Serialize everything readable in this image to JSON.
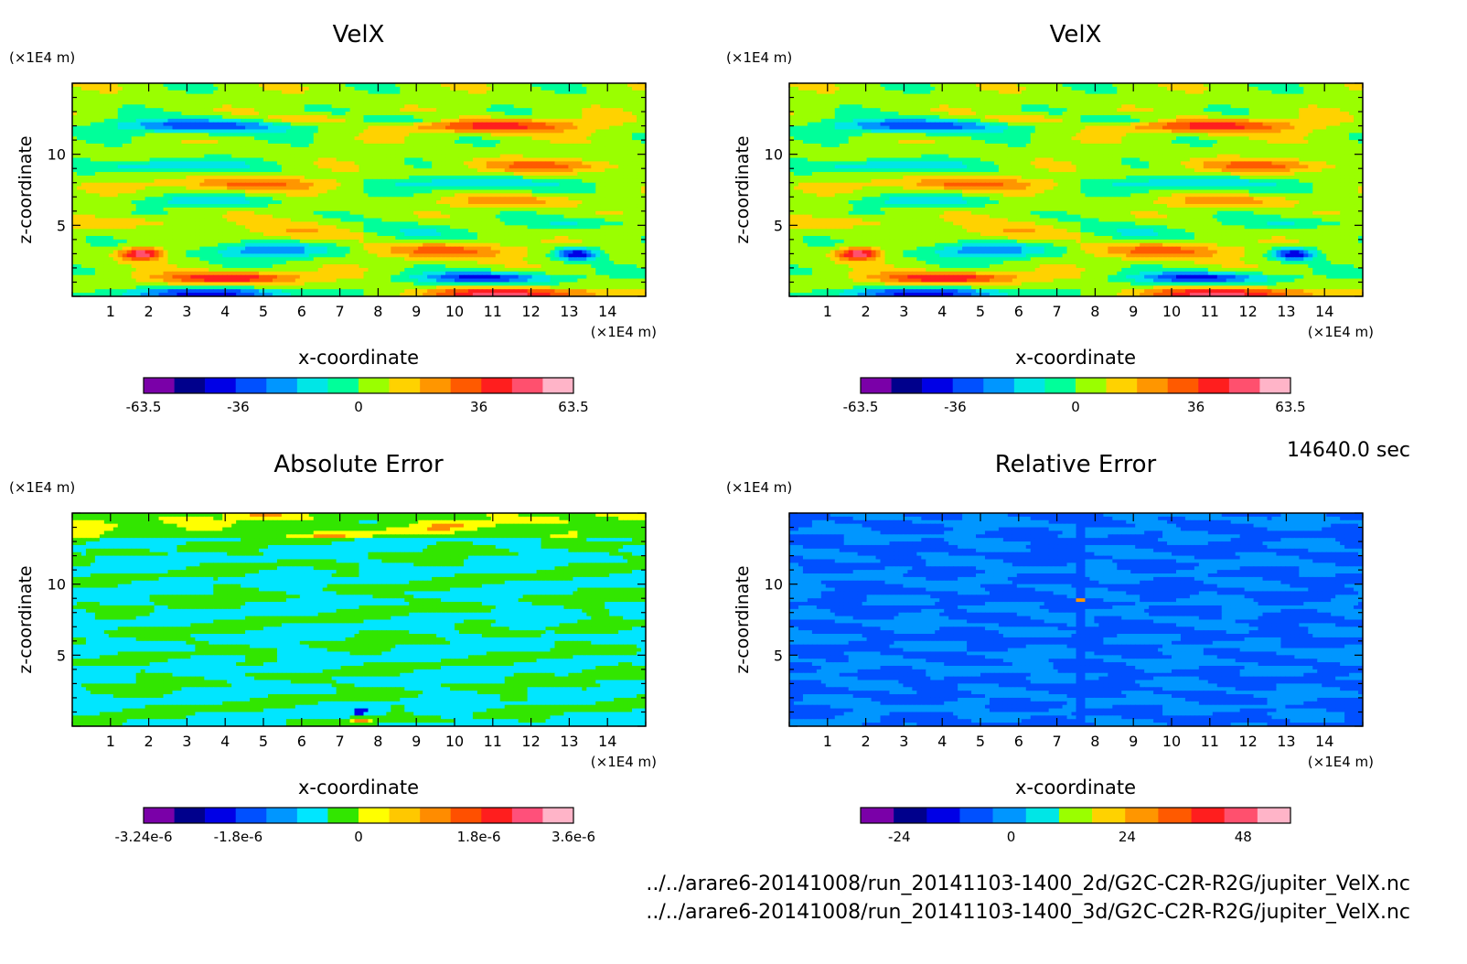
{
  "time_label": "14640.0 sec",
  "file_paths": [
    "../../arare6-20141008/run_20141103-1400_2d/G2C-C2R-R2G/jupiter_VelX.nc",
    "../../arare6-20141008/run_20141103-1400_3d/G2C-C2R-R2G/jupiter_VelX.nc"
  ],
  "chart_data": [
    {
      "type": "heatmap",
      "title": "VelX",
      "xlabel": "x-coordinate",
      "ylabel": "z-coordinate",
      "x_unit": "(x1E4 m)",
      "y_unit": "(x1E4 m)",
      "xlim": [
        0,
        15
      ],
      "ylim": [
        0,
        15
      ],
      "x_ticks": [
        "1",
        "2",
        "3",
        "4",
        "5",
        "6",
        "7",
        "8",
        "9",
        "10",
        "11",
        "12",
        "13",
        "14"
      ],
      "y_ticks": [
        "5",
        "10"
      ],
      "colorbar_labels": [
        "-63.5",
        "-36",
        "0",
        "36",
        "63.5"
      ],
      "colorbar_colors": [
        "#7a00a8",
        "#00008c",
        "#0000e6",
        "#0050ff",
        "#0096ff",
        "#00e6e6",
        "#00ff9a",
        "#9aff00",
        "#ffd200",
        "#ff9600",
        "#ff5a00",
        "#ff1e1e",
        "#ff506e",
        "#ffb4c8"
      ],
      "field": "velx"
    },
    {
      "type": "heatmap",
      "title": "VelX",
      "xlabel": "x-coordinate",
      "ylabel": "z-coordinate",
      "x_unit": "(x1E4 m)",
      "y_unit": "(x1E4 m)",
      "xlim": [
        0,
        15
      ],
      "ylim": [
        0,
        15
      ],
      "x_ticks": [
        "1",
        "2",
        "3",
        "4",
        "5",
        "6",
        "7",
        "8",
        "9",
        "10",
        "11",
        "12",
        "13",
        "14"
      ],
      "y_ticks": [
        "5",
        "10"
      ],
      "colorbar_labels": [
        "-63.5",
        "-36",
        "0",
        "36",
        "63.5"
      ],
      "colorbar_colors": [
        "#7a00a8",
        "#00008c",
        "#0000e6",
        "#0050ff",
        "#0096ff",
        "#00e6e6",
        "#00ff9a",
        "#9aff00",
        "#ffd200",
        "#ff9600",
        "#ff5a00",
        "#ff1e1e",
        "#ff506e",
        "#ffb4c8"
      ],
      "field": "velx"
    },
    {
      "type": "heatmap",
      "title": "Absolute Error",
      "xlabel": "x-coordinate",
      "ylabel": "z-coordinate",
      "x_unit": "(x1E4 m)",
      "y_unit": "(x1E4 m)",
      "xlim": [
        0,
        15
      ],
      "ylim": [
        0,
        15
      ],
      "x_ticks": [
        "1",
        "2",
        "3",
        "4",
        "5",
        "6",
        "7",
        "8",
        "9",
        "10",
        "11",
        "12",
        "13",
        "14"
      ],
      "y_ticks": [
        "5",
        "10"
      ],
      "colorbar_labels": [
        "-3.24e-6",
        "-1.8e-6",
        "0",
        "1.8e-6",
        "3.6e-6"
      ],
      "colorbar_colors": [
        "#7a00a8",
        "#00008c",
        "#0000e6",
        "#0050ff",
        "#0096ff",
        "#00e6ff",
        "#32e600",
        "#ffff00",
        "#ffc800",
        "#ff8c00",
        "#ff5000",
        "#ff1e1e",
        "#ff507a",
        "#ffb4c8"
      ],
      "field": "abserr"
    },
    {
      "type": "heatmap",
      "title": "Relative Error",
      "xlabel": "x-coordinate",
      "ylabel": "z-coordinate",
      "x_unit": "(x1E4 m)",
      "y_unit": "(x1E4 m)",
      "xlim": [
        0,
        15
      ],
      "ylim": [
        0,
        15
      ],
      "x_ticks": [
        "1",
        "2",
        "3",
        "4",
        "5",
        "6",
        "7",
        "8",
        "9",
        "10",
        "11",
        "12",
        "13",
        "14"
      ],
      "y_ticks": [
        "5",
        "10"
      ],
      "colorbar_labels": [
        "-24",
        "0",
        "24",
        "48"
      ],
      "colorbar_colors": [
        "#7a00a8",
        "#00008c",
        "#0000e6",
        "#0050ff",
        "#0096ff",
        "#00e6e6",
        "#9aff00",
        "#ffd200",
        "#ff9600",
        "#ff5a00",
        "#ff1e1e",
        "#ff506e",
        "#ffb4c8"
      ],
      "field": "relerr"
    }
  ]
}
